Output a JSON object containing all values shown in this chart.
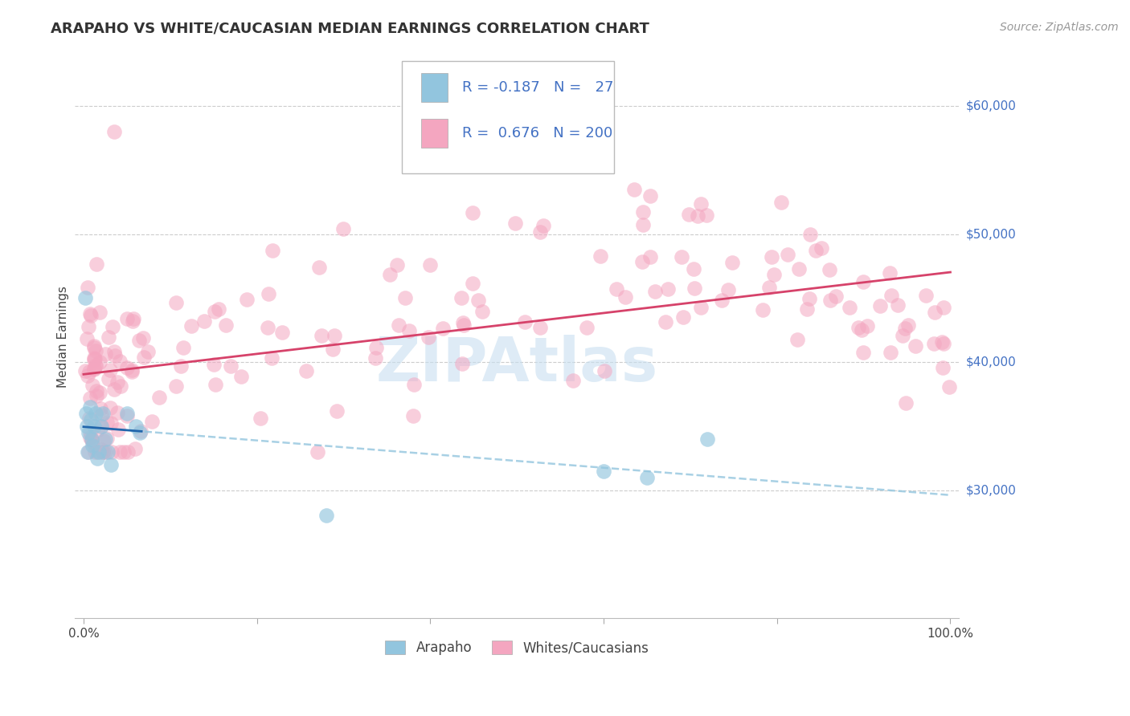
{
  "title": "ARAPAHO VS WHITE/CAUCASIAN MEDIAN EARNINGS CORRELATION CHART",
  "source": "Source: ZipAtlas.com",
  "ylabel": "Median Earnings",
  "y_tick_labels": [
    "$30,000",
    "$40,000",
    "$50,000",
    "$60,000"
  ],
  "y_tick_values": [
    30000,
    40000,
    50000,
    60000
  ],
  "y_min": 20000,
  "y_max": 64000,
  "x_min": -0.01,
  "x_max": 1.01,
  "blue_color": "#92c5de",
  "pink_color": "#f4a6c0",
  "trend_blue_solid": "#2166ac",
  "trend_blue_dash": "#92c5de",
  "trend_pink": "#d6426a",
  "watermark": "ZIPAtlas",
  "watermark_color": "#c8dff0",
  "title_fontsize": 13,
  "source_fontsize": 10,
  "background_color": "#ffffff",
  "grid_color": "#cccccc",
  "right_label_color": "#4472c4",
  "legend_text_color": "#4472c4"
}
